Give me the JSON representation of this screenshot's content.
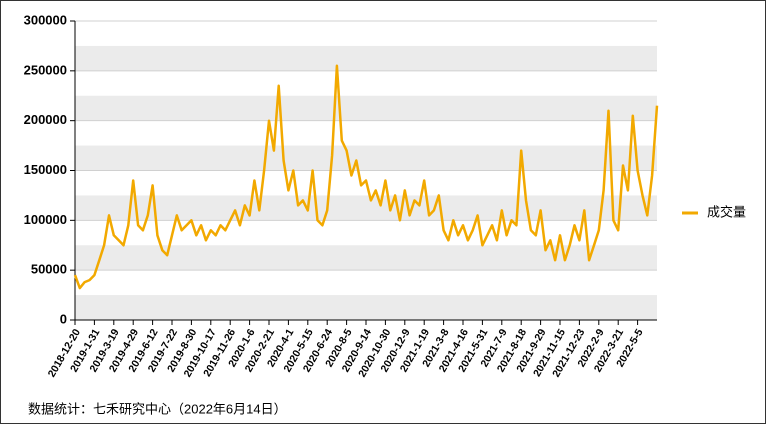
{
  "chart_data": {
    "type": "line",
    "categories": [
      "2018-12-20",
      null,
      null,
      null,
      "2019-1-31",
      null,
      null,
      null,
      "2019-3-19",
      null,
      null,
      null,
      "2019-4-29",
      null,
      null,
      null,
      "2019-6-12",
      null,
      null,
      null,
      "2019-7-22",
      null,
      null,
      null,
      "2019-8-30",
      null,
      null,
      null,
      "2019-10-17",
      null,
      null,
      null,
      "2019-11-26",
      null,
      null,
      null,
      "2020-1-6",
      null,
      null,
      null,
      "2020-2-21",
      null,
      null,
      null,
      "2020-4-1",
      null,
      null,
      null,
      "2020-5-15",
      null,
      null,
      null,
      "2020-6-24",
      null,
      null,
      null,
      "2020-8-5",
      null,
      null,
      null,
      "2020-9-14",
      null,
      null,
      null,
      "2020-10-30",
      null,
      null,
      null,
      "2020-12-9",
      null,
      null,
      null,
      "2021-1-19",
      null,
      null,
      null,
      "2021-3-8",
      null,
      null,
      null,
      "2021-4-16",
      null,
      null,
      null,
      "2021-5-31",
      null,
      null,
      null,
      "2021-7-9",
      null,
      null,
      null,
      "2021-8-18",
      null,
      null,
      null,
      "2021-9-29",
      null,
      null,
      null,
      "2021-11-15",
      null,
      null,
      null,
      "2021-12-23",
      null,
      null,
      null,
      "2022-2-9",
      null,
      null,
      null,
      "2022-3-21",
      null,
      null,
      null,
      "2022-5-5",
      null,
      null,
      null,
      null
    ],
    "series": [
      {
        "name": "成交量",
        "color": "#f2a900",
        "values": [
          45000,
          32000,
          38000,
          40000,
          45000,
          60000,
          75000,
          105000,
          85000,
          80000,
          75000,
          95000,
          140000,
          95000,
          90000,
          105000,
          135000,
          85000,
          70000,
          65000,
          85000,
          105000,
          90000,
          95000,
          100000,
          85000,
          95000,
          80000,
          90000,
          85000,
          95000,
          90000,
          100000,
          110000,
          95000,
          115000,
          105000,
          140000,
          110000,
          150000,
          200000,
          170000,
          235000,
          160000,
          130000,
          150000,
          115000,
          120000,
          110000,
          150000,
          100000,
          95000,
          110000,
          165000,
          255000,
          180000,
          170000,
          145000,
          160000,
          135000,
          140000,
          120000,
          130000,
          115000,
          140000,
          110000,
          125000,
          100000,
          130000,
          105000,
          120000,
          115000,
          140000,
          105000,
          110000,
          125000,
          90000,
          80000,
          100000,
          85000,
          95000,
          80000,
          90000,
          105000,
          75000,
          85000,
          95000,
          80000,
          110000,
          85000,
          100000,
          95000,
          170000,
          120000,
          90000,
          85000,
          110000,
          70000,
          80000,
          60000,
          85000,
          60000,
          75000,
          95000,
          80000,
          110000,
          60000,
          75000,
          90000,
          130000,
          210000,
          100000,
          90000,
          155000,
          130000,
          205000,
          150000,
          125000,
          105000,
          145000,
          215000
        ]
      }
    ],
    "ylim": [
      0,
      300000
    ],
    "yticks": [
      0,
      50000,
      100000,
      150000,
      200000,
      250000,
      300000
    ],
    "legend": "right",
    "source": "数据统计：七禾研究中心（2022年6月14日）"
  }
}
